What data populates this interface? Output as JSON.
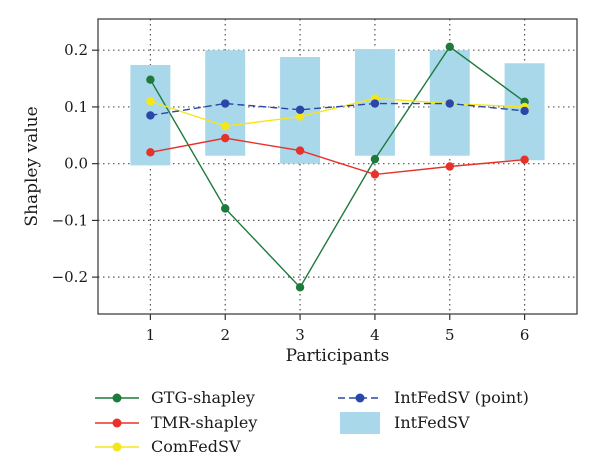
{
  "chart_data": {
    "type": "line",
    "xlabel": "Participants",
    "ylabel": "Shapley value",
    "x": [
      1,
      2,
      3,
      4,
      5,
      6
    ],
    "xlim": [
      0.3,
      6.7
    ],
    "ylim": [
      -0.265,
      0.255
    ],
    "yticks": [
      -0.2,
      -0.1,
      0.0,
      0.1,
      0.2
    ],
    "ytick_labels": [
      "−0.2",
      "−0.1",
      "0.0",
      "0.1",
      "0.2"
    ],
    "xtick_labels": [
      "1",
      "2",
      "3",
      "4",
      "5",
      "6"
    ],
    "grid": "dotted",
    "legend_placement": "bottom",
    "series": [
      {
        "name": "GTG-shapley",
        "kind": "line-marker",
        "color": "#1e7a3c",
        "values": [
          0.148,
          -0.079,
          -0.218,
          0.008,
          0.206,
          0.109
        ]
      },
      {
        "name": "TMR-shapley",
        "kind": "line-marker",
        "color": "#e8312a",
        "values": [
          0.02,
          0.045,
          0.023,
          -0.019,
          -0.005,
          0.007
        ]
      },
      {
        "name": "ComFedSV",
        "kind": "line-marker",
        "color": "#f5e61c",
        "values": [
          0.11,
          0.066,
          0.083,
          0.115,
          0.106,
          0.1
        ]
      },
      {
        "name": "IntFedSV (point)",
        "kind": "dashed-marker",
        "color": "#2a46a8",
        "values": [
          0.085,
          0.106,
          0.095,
          0.106,
          0.106,
          0.093
        ]
      },
      {
        "name": "IntFedSV",
        "kind": "interval",
        "color": "#a9d8ea",
        "low": [
          -0.003,
          0.014,
          0.0,
          0.014,
          0.014,
          0.006
        ],
        "high": [
          0.174,
          0.2,
          0.188,
          0.202,
          0.2,
          0.177
        ]
      }
    ]
  }
}
